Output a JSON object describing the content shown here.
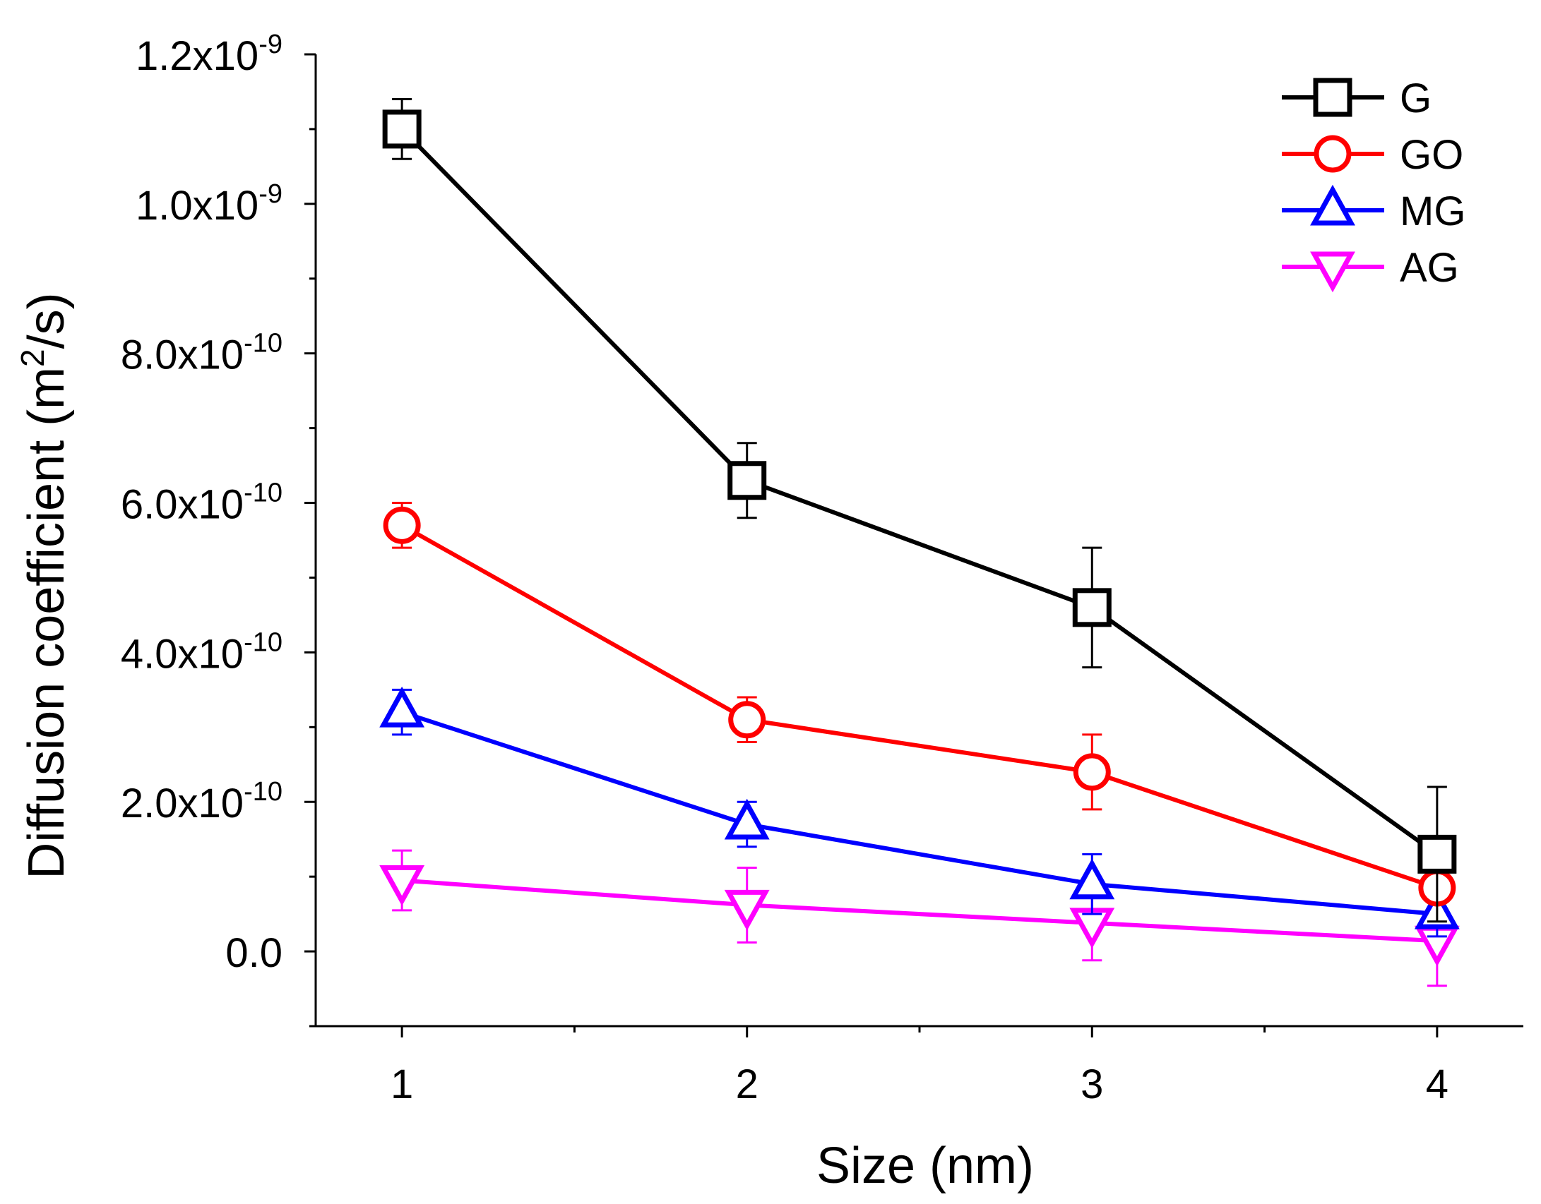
{
  "chart_data": {
    "type": "line",
    "title": "",
    "xlabel": "Size (nm)",
    "ylabel": {
      "prefix": "Diffusion coefficient (m",
      "sup": "2",
      "suffix": "/s)"
    },
    "x": [
      1,
      2,
      3,
      4
    ],
    "xlim": [
      0.75,
      4.25
    ],
    "ylim": [
      -1e-10,
      1.2e-09
    ],
    "x_ticks": [
      {
        "value": 1,
        "label": "1"
      },
      {
        "value": 2,
        "label": "2"
      },
      {
        "value": 3,
        "label": "3"
      },
      {
        "value": 4,
        "label": "4"
      }
    ],
    "y_ticks": [
      {
        "value": 0,
        "mantissa": "0.0",
        "exponent": ""
      },
      {
        "value": 2e-10,
        "mantissa": "2.0x10",
        "exponent": "-10"
      },
      {
        "value": 4e-10,
        "mantissa": "4.0x10",
        "exponent": "-10"
      },
      {
        "value": 6e-10,
        "mantissa": "6.0x10",
        "exponent": "-10"
      },
      {
        "value": 8e-10,
        "mantissa": "8.0x10",
        "exponent": "-10"
      },
      {
        "value": 1e-09,
        "mantissa": "1.0x10",
        "exponent": "-9"
      },
      {
        "value": 1.2e-09,
        "mantissa": "1.2x10",
        "exponent": "-9"
      }
    ],
    "grid": false,
    "legend_position": "top-right",
    "series": [
      {
        "name": "G",
        "color": "#000000",
        "marker": "square",
        "values": [
          1.1e-09,
          6.3e-10,
          4.6e-10,
          1.3e-10
        ],
        "errors": [
          4e-11,
          5e-11,
          8e-11,
          9e-11
        ]
      },
      {
        "name": "GO",
        "color": "#ff0000",
        "marker": "circle",
        "values": [
          5.7e-10,
          3.1e-10,
          2.4e-10,
          8.5e-11
        ],
        "errors": [
          3e-11,
          3e-11,
          5e-11,
          2e-11
        ]
      },
      {
        "name": "MG",
        "color": "#0000ff",
        "marker": "triangle-up",
        "values": [
          3.2e-10,
          1.7e-10,
          9e-11,
          5e-11
        ],
        "errors": [
          3e-11,
          3e-11,
          4e-11,
          3e-11
        ]
      },
      {
        "name": "AG",
        "color": "#ff00ff",
        "marker": "triangle-down",
        "values": [
          9.5e-11,
          6.2e-11,
          3.8e-11,
          1.4e-11
        ],
        "errors": [
          4e-11,
          5e-11,
          5e-11,
          6e-11
        ]
      }
    ]
  }
}
